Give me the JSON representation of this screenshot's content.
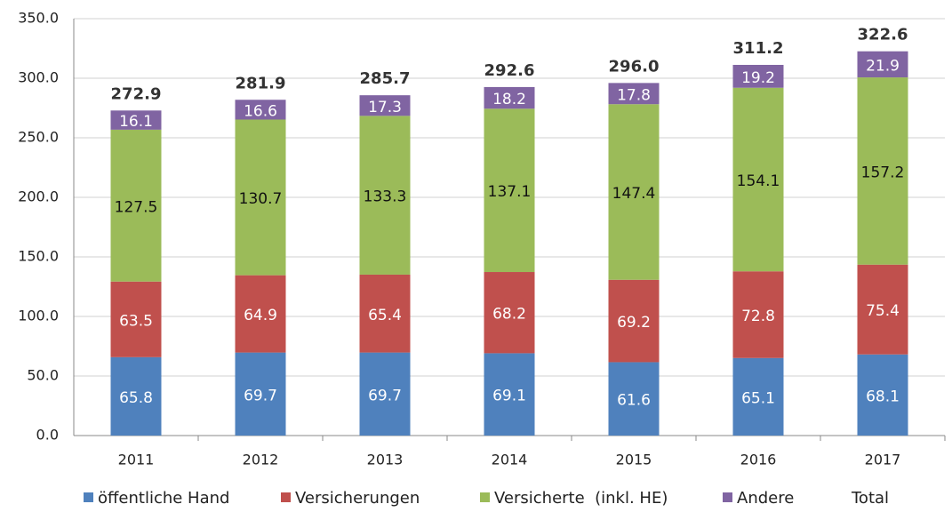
{
  "chart_data": {
    "type": "stacked-bar",
    "categories": [
      "2011",
      "2012",
      "2013",
      "2014",
      "2015",
      "2016",
      "2017"
    ],
    "series": [
      {
        "name": "öffentliche Hand",
        "color": "#4f81bd",
        "values": [
          65.8,
          69.7,
          69.7,
          69.1,
          61.6,
          65.1,
          68.1
        ]
      },
      {
        "name": "Versicherungen",
        "color": "#c0504d",
        "values": [
          63.5,
          64.9,
          65.4,
          68.2,
          69.2,
          72.8,
          75.4
        ]
      },
      {
        "name": "Versicherte  (inkl. HE)",
        "color": "#9bbb59",
        "values": [
          127.5,
          130.7,
          133.3,
          137.1,
          147.4,
          154.1,
          157.2
        ]
      },
      {
        "name": "Andere",
        "color": "#8064a2",
        "values": [
          16.1,
          16.6,
          17.3,
          18.2,
          17.8,
          19.2,
          21.9
        ]
      },
      {
        "name": "Total",
        "values": [
          272.9,
          281.9,
          285.7,
          292.6,
          296.0,
          311.2,
          322.6
        ],
        "value_labels": [
          "272.9",
          "281.9",
          "285.7",
          "292.6",
          "296.0",
          "311.2",
          "322.6"
        ]
      }
    ],
    "ylim": [
      0,
      350
    ],
    "yticks": [
      {
        "value": 0,
        "label": "0.0"
      },
      {
        "value": 50,
        "label": "50.0"
      },
      {
        "value": 100,
        "label": "100.0"
      },
      {
        "value": 150,
        "label": "150.0"
      },
      {
        "value": 200,
        "label": "200.0"
      },
      {
        "value": 250,
        "label": "250.0"
      },
      {
        "value": 300,
        "label": "300.0"
      },
      {
        "value": 350,
        "label": "350.0"
      }
    ],
    "grid": true
  }
}
